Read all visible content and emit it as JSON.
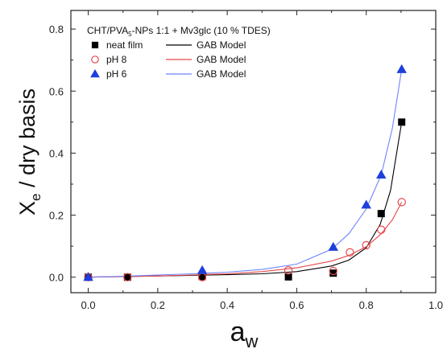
{
  "chart_data": {
    "type": "scatter",
    "xlim": [
      -0.05,
      1.0
    ],
    "ylim": [
      -0.05,
      0.86
    ],
    "x_ticks": [
      0.0,
      0.2,
      0.4,
      0.6,
      0.8,
      1.0
    ],
    "x_tick_labels": [
      "0.0",
      "0.2",
      "0.4",
      "0.6",
      "0.8",
      "1.0"
    ],
    "y_ticks": [
      0.0,
      0.2,
      0.4,
      0.6,
      0.8
    ],
    "y_tick_labels": [
      "0.0",
      "0.2",
      "0.4",
      "0.6",
      "0.8"
    ],
    "grid": false,
    "ylabel": {
      "main": "X",
      "sub": "e",
      "rest": " / dry basis"
    },
    "xlabel": {
      "main": "a",
      "sub": "w"
    },
    "legend": {
      "placement": "top-left",
      "title": {
        "pre": "CHT/PVA",
        "sub": "5",
        "post": "-NPs 1:1 + Mv3glc (10 % TDES)"
      },
      "model_label": "GAB Model"
    },
    "series": [
      {
        "name": "neat film",
        "marker": "square",
        "color": "#000000",
        "filled": true,
        "x": [
          0.0,
          0.113,
          0.328,
          0.576,
          0.705,
          0.843,
          0.902
        ],
        "y": [
          0.0,
          0.0,
          0.002,
          0.001,
          0.013,
          0.205,
          0.5
        ]
      },
      {
        "name": "pH 8",
        "marker": "circle",
        "color": "#e8474a",
        "filled": false,
        "x": [
          0.0,
          0.113,
          0.328,
          0.576,
          0.705,
          0.753,
          0.8,
          0.843,
          0.902
        ],
        "y": [
          0.0,
          0.0,
          0.0,
          0.022,
          0.02,
          0.08,
          0.103,
          0.153,
          0.242
        ]
      },
      {
        "name": "pH 6",
        "marker": "triangle",
        "color": "#1f3fdc",
        "filled": true,
        "x": [
          0.0,
          0.328,
          0.705,
          0.8,
          0.843,
          0.902
        ],
        "y": [
          0.0,
          0.022,
          0.097,
          0.233,
          0.33,
          0.67
        ]
      }
    ],
    "model_curves": [
      {
        "for": "neat film",
        "color": "#000000",
        "x": [
          0.0,
          0.1,
          0.2,
          0.3,
          0.4,
          0.5,
          0.6,
          0.7,
          0.75,
          0.8,
          0.84,
          0.87,
          0.902
        ],
        "y": [
          0.0,
          0.002,
          0.004,
          0.006,
          0.008,
          0.011,
          0.018,
          0.036,
          0.055,
          0.095,
          0.17,
          0.28,
          0.5
        ]
      },
      {
        "for": "pH 8",
        "color": "#e8474a",
        "x": [
          0.0,
          0.1,
          0.2,
          0.3,
          0.4,
          0.5,
          0.6,
          0.7,
          0.75,
          0.8,
          0.843,
          0.875,
          0.902
        ],
        "y": [
          0.0,
          0.002,
          0.004,
          0.007,
          0.011,
          0.018,
          0.03,
          0.052,
          0.07,
          0.098,
          0.14,
          0.185,
          0.242
        ]
      },
      {
        "for": "pH 6",
        "color": "#6f84ff",
        "x": [
          0.0,
          0.1,
          0.2,
          0.3,
          0.4,
          0.5,
          0.6,
          0.7,
          0.75,
          0.8,
          0.843,
          0.875,
          0.902
        ],
        "y": [
          0.0,
          0.003,
          0.007,
          0.011,
          0.016,
          0.025,
          0.042,
          0.09,
          0.14,
          0.22,
          0.33,
          0.48,
          0.67
        ]
      }
    ]
  }
}
